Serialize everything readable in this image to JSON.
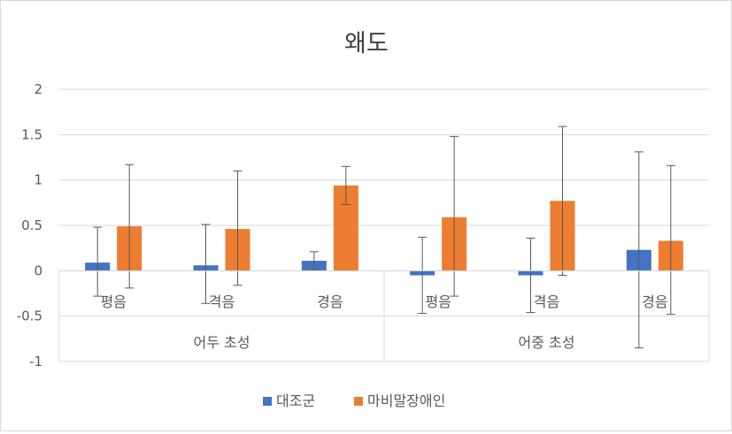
{
  "chart_data": {
    "type": "bar",
    "title": "왜도",
    "groups": [
      {
        "label": "어두 초성",
        "categories": [
          "평음",
          "격음",
          "경음"
        ]
      },
      {
        "label": "어중 초성",
        "categories": [
          "평음",
          "격음",
          "경음"
        ]
      }
    ],
    "categories": [
      "평음",
      "격음",
      "경음",
      "평음",
      "격음",
      "경음"
    ],
    "series": [
      {
        "name": "대조군",
        "color": "#4472C4",
        "values": [
          0.09,
          0.06,
          0.11,
          -0.05,
          -0.05,
          0.23
        ],
        "error_low": [
          -0.28,
          -0.36,
          0.01,
          -0.47,
          -0.46,
          -0.85
        ],
        "error_high": [
          0.48,
          0.51,
          0.21,
          0.37,
          0.36,
          1.31
        ]
      },
      {
        "name": "마비말장애인",
        "color": "#ED7D31",
        "values": [
          0.49,
          0.46,
          0.94,
          0.59,
          0.77,
          0.33
        ],
        "error_low": [
          -0.19,
          -0.16,
          0.73,
          -0.28,
          -0.05,
          -0.48
        ],
        "error_high": [
          1.17,
          1.1,
          1.15,
          1.48,
          1.59,
          1.16
        ]
      }
    ],
    "ylim": [
      -1,
      2
    ],
    "yticks": [
      -1,
      -0.5,
      0,
      0.5,
      1,
      1.5,
      2
    ],
    "ytick_labels": [
      "-1",
      "-0.5",
      "0",
      "0.5",
      "1",
      "1.5",
      "2"
    ],
    "grid": true,
    "legend_position": "bottom"
  }
}
